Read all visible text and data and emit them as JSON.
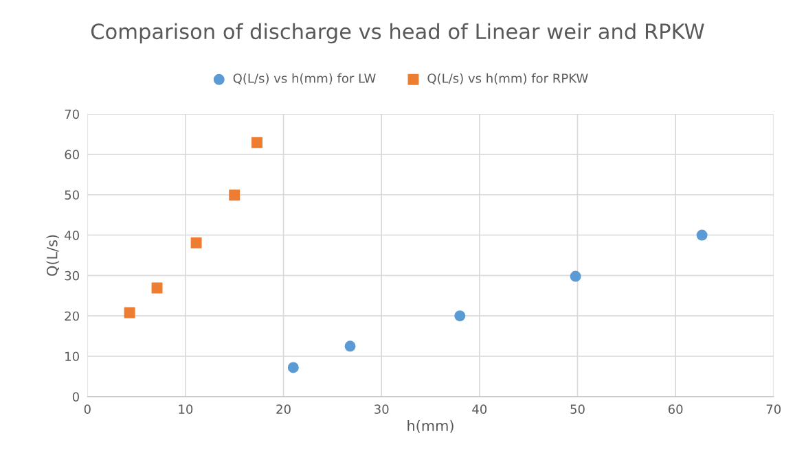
{
  "chart_data": {
    "type": "scatter",
    "title": "Comparison of discharge vs head of Linear weir and RPKW",
    "xlabel": "h(mm)",
    "ylabel": "Q(L/s)",
    "series": [
      {
        "name": "Q(L/s) vs h(mm) for LW",
        "color": "#5b9bd5",
        "marker": "circle",
        "x": [
          21.0,
          26.8,
          38.0,
          49.8,
          62.7
        ],
        "values": [
          7.2,
          12.5,
          20.0,
          29.8,
          40.0
        ]
      },
      {
        "name": "Q(L/s) vs h(mm) for RPKW",
        "color": "#ed7d31",
        "marker": "square",
        "x": [
          4.3,
          7.1,
          11.1,
          15.0,
          17.3
        ],
        "values": [
          20.8,
          26.9,
          38.1,
          49.9,
          62.9
        ]
      }
    ],
    "xlim": [
      0,
      70
    ],
    "xticks": [
      0,
      10,
      20,
      30,
      40,
      50,
      60,
      70
    ],
    "ylim": [
      0,
      70
    ],
    "yticks": [
      0,
      10,
      20,
      30,
      40,
      50,
      60,
      70
    ],
    "grid": true,
    "legend": "top"
  }
}
